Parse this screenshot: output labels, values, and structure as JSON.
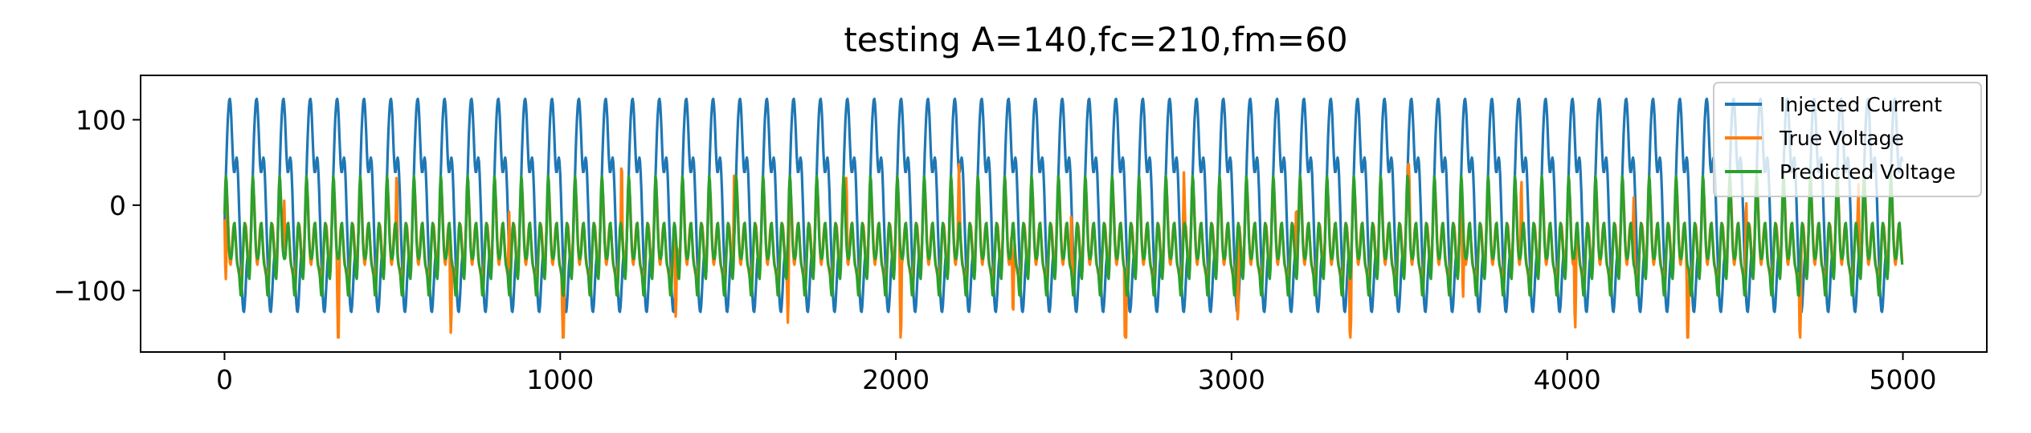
{
  "chart_data": {
    "type": "line",
    "title": "testing A=140,fc=210,fm=60",
    "xlabel": "",
    "ylabel": "",
    "xlim": [
      -250,
      5250
    ],
    "ylim": [
      -172,
      152
    ],
    "xticks": [
      0,
      1000,
      2000,
      3000,
      4000,
      5000
    ],
    "xtick_labels": [
      "0",
      "1000",
      "2000",
      "3000",
      "4000",
      "5000"
    ],
    "yticks": [
      100,
      0,
      -100
    ],
    "ytick_labels": [
      "100",
      "0",
      "−100"
    ],
    "grid": false,
    "legend_position": "top-right",
    "n_points": 5000,
    "series": [
      {
        "name": "Injected Current",
        "color": "#1f77b4",
        "range": [
          -140,
          140
        ],
        "description_of_pattern": "periodic, period approx 80 samples, peaks at +138 and troughs at -136",
        "x_start": 0,
        "x_end": 4999,
        "y_at_x0": 0
      },
      {
        "name": "True Voltage",
        "color": "#ff7f0e",
        "range": [
          -155,
          48
        ],
        "x_start": 0,
        "x_end": 4999
      },
      {
        "name": "Predicted Voltage",
        "color": "#2ca02c",
        "range": [
          -125,
          45
        ],
        "x_start": 0,
        "x_end": 4999
      }
    ]
  }
}
